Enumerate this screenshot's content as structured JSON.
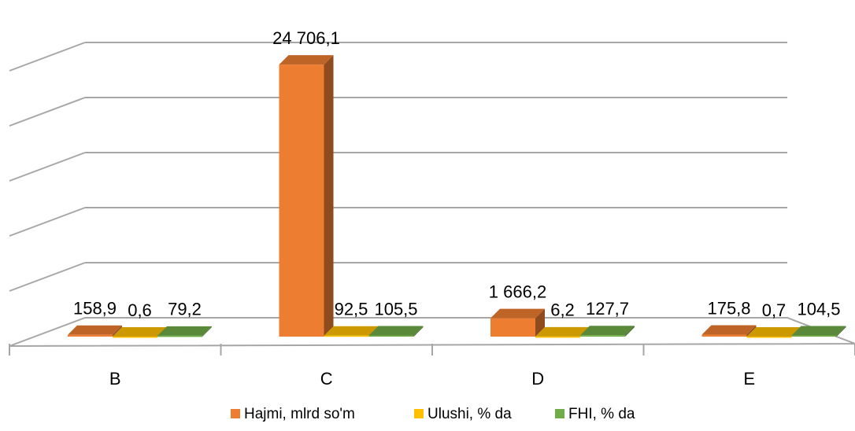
{
  "chart_data": {
    "type": "bar3d",
    "categories": [
      "B",
      "C",
      "D",
      "E"
    ],
    "series": [
      {
        "name": "Hajmi, mlrd so'm",
        "color": "#ed7d31",
        "values": [
          158.9,
          24706.1,
          1666.2,
          175.8
        ],
        "value_labels": [
          "158,9",
          "24 706,1",
          "1 666,2",
          "175,8"
        ]
      },
      {
        "name": "Ulushi, % da",
        "color": "#ffc000",
        "values": [
          0.6,
          92.5,
          6.2,
          0.7
        ],
        "value_labels": [
          "0,6",
          "92,5",
          "6,2",
          "0,7"
        ]
      },
      {
        "name": "FHI, % da",
        "color": "#70ad47",
        "values": [
          79.2,
          105.5,
          127.7,
          104.5
        ],
        "value_labels": [
          "79,2",
          "105,5",
          "127,7",
          "104,5"
        ]
      }
    ],
    "ylim": [
      0,
      25000
    ],
    "yticks": [
      0,
      5000,
      10000,
      15000,
      20000,
      25000
    ],
    "grid": true,
    "legend": "bottom"
  }
}
